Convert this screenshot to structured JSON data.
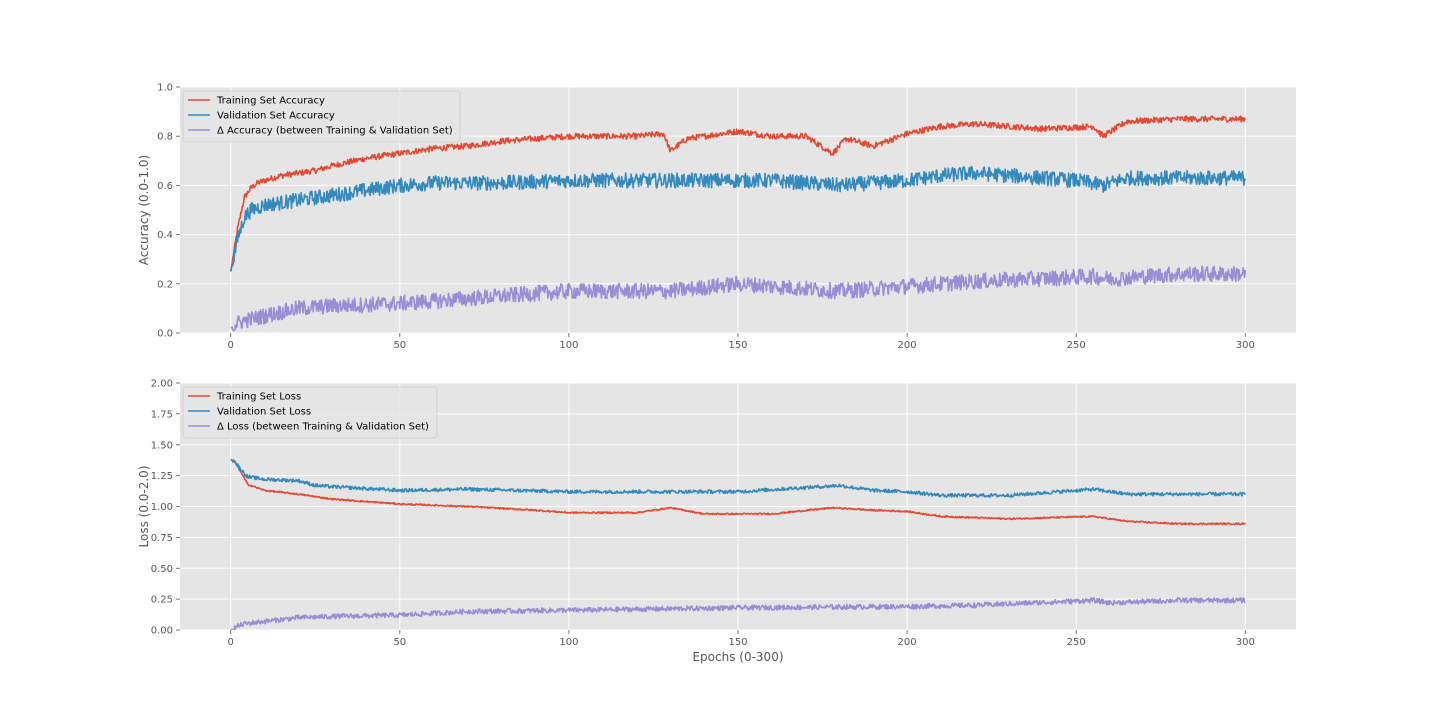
{
  "chart_data": [
    {
      "type": "line",
      "style": "ggplot",
      "xlabel": "",
      "ylabel": "Accuracy (0.0-1.0)",
      "xlim": [
        -15,
        315
      ],
      "ylim": [
        0.0,
        1.0
      ],
      "xticks": [
        0,
        50,
        100,
        150,
        200,
        250,
        300
      ],
      "xtick_labels": [
        "0",
        "50",
        "100",
        "150",
        "200",
        "250",
        "300"
      ],
      "yticks": [
        0.0,
        0.2,
        0.4,
        0.6,
        0.8,
        1.0
      ],
      "ytick_labels": [
        "0.0",
        "0.2",
        "0.4",
        "0.6",
        "0.8",
        "1.0"
      ],
      "grid": true,
      "legend_position": "top-left",
      "series": [
        {
          "name": "Training Set Accuracy",
          "color": "#E24A33",
          "noise": 0.012,
          "x": [
            0,
            2,
            4,
            6,
            8,
            10,
            15,
            20,
            25,
            30,
            40,
            50,
            60,
            70,
            80,
            90,
            100,
            110,
            120,
            128,
            130,
            135,
            150,
            160,
            170,
            178,
            182,
            190,
            200,
            210,
            220,
            230,
            240,
            255,
            258,
            265,
            280,
            300
          ],
          "y": [
            0.25,
            0.42,
            0.55,
            0.59,
            0.61,
            0.62,
            0.64,
            0.65,
            0.66,
            0.68,
            0.71,
            0.73,
            0.75,
            0.76,
            0.78,
            0.79,
            0.8,
            0.8,
            0.8,
            0.81,
            0.74,
            0.79,
            0.82,
            0.8,
            0.8,
            0.73,
            0.79,
            0.76,
            0.81,
            0.84,
            0.85,
            0.84,
            0.83,
            0.84,
            0.8,
            0.86,
            0.87,
            0.87
          ]
        },
        {
          "name": "Validation Set Accuracy",
          "color": "#348ABD",
          "noise": 0.03,
          "x": [
            0,
            2,
            4,
            6,
            10,
            20,
            30,
            40,
            50,
            60,
            80,
            100,
            120,
            140,
            160,
            180,
            200,
            210,
            220,
            230,
            250,
            258,
            265,
            280,
            300
          ],
          "y": [
            0.25,
            0.38,
            0.47,
            0.5,
            0.52,
            0.54,
            0.56,
            0.58,
            0.6,
            0.61,
            0.61,
            0.62,
            0.62,
            0.62,
            0.62,
            0.6,
            0.62,
            0.64,
            0.65,
            0.64,
            0.62,
            0.6,
            0.63,
            0.63,
            0.63
          ]
        },
        {
          "name": "Δ Accuracy (between Training & Validation Set)",
          "color": "#988ED5",
          "noise": 0.032,
          "x": [
            0,
            2,
            4,
            10,
            20,
            30,
            50,
            70,
            100,
            130,
            150,
            180,
            200,
            220,
            255,
            260,
            280,
            300
          ],
          "y": [
            0.02,
            0.04,
            0.05,
            0.07,
            0.1,
            0.11,
            0.12,
            0.14,
            0.17,
            0.17,
            0.2,
            0.17,
            0.19,
            0.21,
            0.23,
            0.22,
            0.24,
            0.24
          ]
        }
      ]
    },
    {
      "type": "line",
      "style": "ggplot",
      "xlabel": "Epochs (0-300)",
      "ylabel": "Loss (0.0-2.0)",
      "xlim": [
        -15,
        315
      ],
      "ylim": [
        0.0,
        2.0
      ],
      "xticks": [
        0,
        50,
        100,
        150,
        200,
        250,
        300
      ],
      "xtick_labels": [
        "0",
        "50",
        "100",
        "150",
        "200",
        "250",
        "300"
      ],
      "yticks": [
        0.0,
        0.25,
        0.5,
        0.75,
        1.0,
        1.25,
        1.5,
        1.75,
        2.0
      ],
      "ytick_labels": [
        "0.00",
        "0.25",
        "0.50",
        "0.75",
        "1.00",
        "1.25",
        "1.50",
        "1.75",
        "2.00"
      ],
      "grid": true,
      "legend_position": "top-left",
      "series": [
        {
          "name": "Training Set Loss",
          "color": "#E24A33",
          "noise": 0.006,
          "x": [
            0,
            1,
            3,
            5,
            10,
            20,
            30,
            40,
            50,
            70,
            90,
            100,
            120,
            130,
            140,
            160,
            178,
            190,
            200,
            210,
            230,
            255,
            265,
            280,
            300
          ],
          "y": [
            1.38,
            1.37,
            1.28,
            1.18,
            1.13,
            1.1,
            1.06,
            1.04,
            1.02,
            1.0,
            0.97,
            0.95,
            0.95,
            0.99,
            0.94,
            0.94,
            0.99,
            0.97,
            0.96,
            0.92,
            0.9,
            0.92,
            0.88,
            0.86,
            0.86
          ]
        },
        {
          "name": "Validation Set Loss",
          "color": "#348ABD",
          "noise": 0.014,
          "x": [
            0,
            1,
            3,
            5,
            10,
            20,
            25,
            30,
            50,
            70,
            100,
            150,
            180,
            190,
            200,
            210,
            230,
            255,
            265,
            280,
            300
          ],
          "y": [
            1.38,
            1.37,
            1.3,
            1.24,
            1.22,
            1.21,
            1.17,
            1.16,
            1.13,
            1.14,
            1.12,
            1.12,
            1.17,
            1.13,
            1.12,
            1.09,
            1.09,
            1.14,
            1.1,
            1.1,
            1.1
          ]
        },
        {
          "name": "Δ Loss (between Training & Validation Set)",
          "color": "#988ED5",
          "noise": 0.02,
          "x": [
            0,
            2,
            4,
            10,
            20,
            30,
            50,
            70,
            100,
            150,
            200,
            220,
            255,
            260,
            280,
            300
          ],
          "y": [
            0.0,
            0.03,
            0.05,
            0.07,
            0.1,
            0.11,
            0.12,
            0.15,
            0.16,
            0.18,
            0.19,
            0.2,
            0.24,
            0.22,
            0.24,
            0.24
          ]
        }
      ]
    }
  ]
}
